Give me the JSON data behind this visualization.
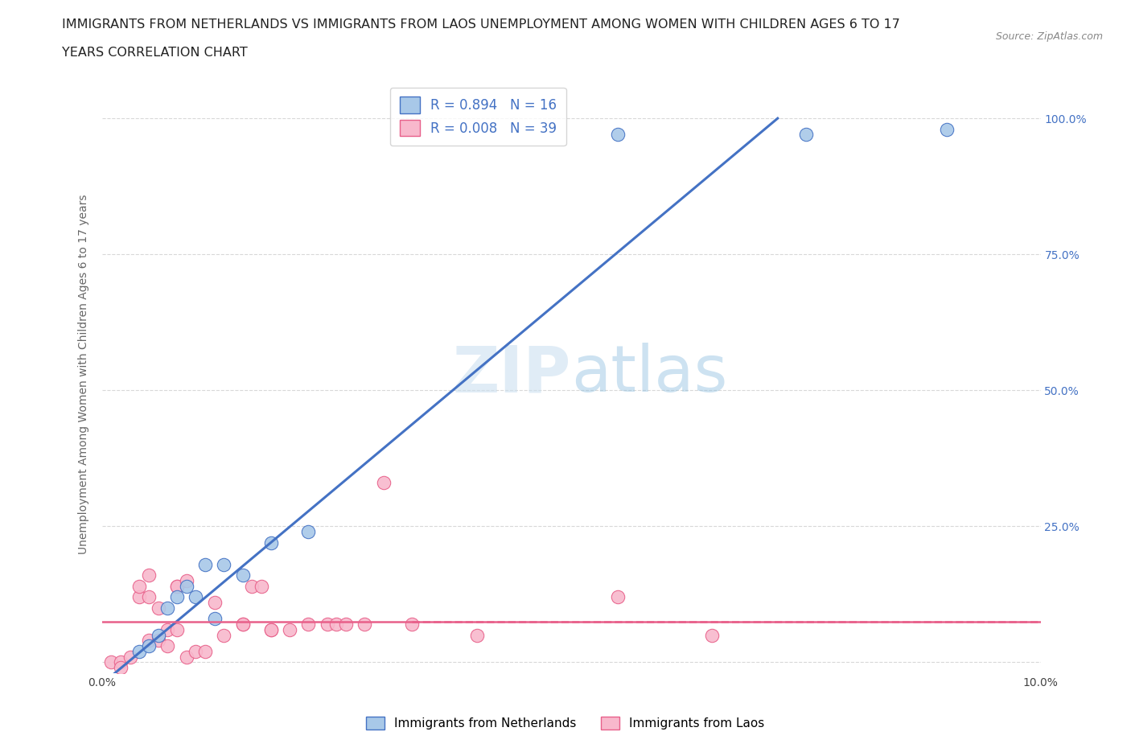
{
  "title_line1": "IMMIGRANTS FROM NETHERLANDS VS IMMIGRANTS FROM LAOS UNEMPLOYMENT AMONG WOMEN WITH CHILDREN AGES 6 TO 17",
  "title_line2": "YEARS CORRELATION CHART",
  "source_text": "Source: ZipAtlas.com",
  "ylabel": "Unemployment Among Women with Children Ages 6 to 17 years",
  "xlim": [
    0.0,
    0.1
  ],
  "ylim": [
    -0.02,
    1.08
  ],
  "x_ticks": [
    0.0,
    0.1
  ],
  "y_ticks": [
    0.0,
    0.25,
    0.5,
    0.75,
    1.0
  ],
  "netherlands_R": 0.894,
  "netherlands_N": 16,
  "laos_R": 0.008,
  "laos_N": 39,
  "netherlands_color": "#a8c8e8",
  "laos_color": "#f8b8cc",
  "netherlands_line_color": "#4472c4",
  "laos_line_color": "#e8608a",
  "netherlands_x": [
    0.004,
    0.005,
    0.006,
    0.007,
    0.008,
    0.009,
    0.01,
    0.011,
    0.012,
    0.013,
    0.015,
    0.018,
    0.022,
    0.055,
    0.075,
    0.09
  ],
  "netherlands_y": [
    0.02,
    0.03,
    0.05,
    0.1,
    0.12,
    0.14,
    0.12,
    0.18,
    0.08,
    0.18,
    0.16,
    0.22,
    0.24,
    0.97,
    0.97,
    0.98
  ],
  "laos_x": [
    0.001,
    0.002,
    0.002,
    0.003,
    0.004,
    0.004,
    0.005,
    0.005,
    0.005,
    0.006,
    0.006,
    0.007,
    0.007,
    0.008,
    0.008,
    0.008,
    0.009,
    0.009,
    0.01,
    0.011,
    0.012,
    0.013,
    0.015,
    0.015,
    0.016,
    0.017,
    0.018,
    0.018,
    0.02,
    0.022,
    0.024,
    0.025,
    0.026,
    0.028,
    0.03,
    0.033,
    0.04,
    0.055,
    0.065
  ],
  "laos_y": [
    0.0,
    0.0,
    -0.01,
    0.01,
    0.12,
    0.14,
    0.12,
    0.16,
    0.04,
    0.04,
    0.1,
    0.03,
    0.06,
    0.06,
    0.14,
    0.14,
    0.01,
    0.15,
    0.02,
    0.02,
    0.11,
    0.05,
    0.07,
    0.07,
    0.14,
    0.14,
    0.06,
    0.06,
    0.06,
    0.07,
    0.07,
    0.07,
    0.07,
    0.07,
    0.33,
    0.07,
    0.05,
    0.12,
    0.05
  ],
  "nl_line_x0": 0.0,
  "nl_line_y0": -0.04,
  "nl_line_x1": 0.072,
  "nl_line_y1": 1.0,
  "laos_line_y": 0.075,
  "background_color": "#ffffff",
  "grid_color": "#d8d8d8"
}
